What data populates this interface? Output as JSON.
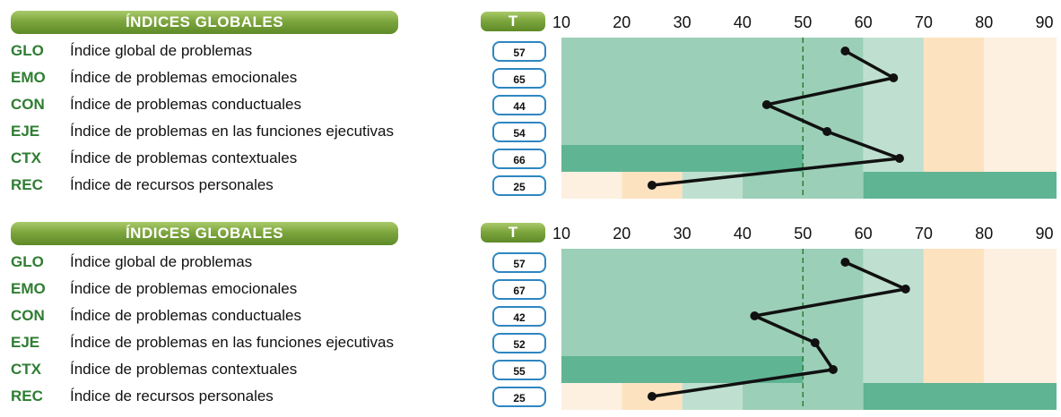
{
  "chart_data": [
    {
      "type": "line",
      "header": "ÍNDICES GLOBALES",
      "t_header": "T",
      "x_ticks": [
        10,
        20,
        30,
        40,
        50,
        60,
        70,
        80,
        90
      ],
      "xlim": [
        10,
        92
      ],
      "reference_line": 50,
      "rows": [
        {
          "code": "GLO",
          "label": "Índice global de problemas",
          "t": 57
        },
        {
          "code": "EMO",
          "label": "Índice de problemas emocionales",
          "t": 65
        },
        {
          "code": "CON",
          "label": "Índice de problemas conductuales",
          "t": 44
        },
        {
          "code": "EJE",
          "label": "Índice de problemas en las funciones ejecutivas",
          "t": 54
        },
        {
          "code": "CTX",
          "label": "Índice de problemas contextuales",
          "t": 66
        },
        {
          "code": "REC",
          "label": "Índice de recursos personales",
          "t": 25
        }
      ]
    },
    {
      "type": "line",
      "header": "ÍNDICES GLOBALES",
      "t_header": "T",
      "x_ticks": [
        10,
        20,
        30,
        40,
        50,
        60,
        70,
        80,
        90
      ],
      "xlim": [
        10,
        92
      ],
      "reference_line": 50,
      "rows": [
        {
          "code": "GLO",
          "label": "Índice global de problemas",
          "t": 57
        },
        {
          "code": "EMO",
          "label": "Índice de problemas emocionales",
          "t": 67
        },
        {
          "code": "CON",
          "label": "Índice de problemas conductuales",
          "t": 42
        },
        {
          "code": "EJE",
          "label": "Índice de problemas en las funciones ejecutivas",
          "t": 52
        },
        {
          "code": "CTX",
          "label": "Índice de problemas contextuales",
          "t": 55
        },
        {
          "code": "REC",
          "label": "Índice de recursos personales",
          "t": 25
        }
      ]
    }
  ],
  "colors": {
    "band_light": "#9ccfb8",
    "band_mid": "#bfe0d0",
    "band_dark": "#5fb494",
    "warn_1": "#fde2c0",
    "warn_2": "#fdf0e0",
    "line": "#111111",
    "ref_line": "#2e7d32",
    "code": "#2e7d32",
    "tbox_border": "#2e86c1"
  }
}
